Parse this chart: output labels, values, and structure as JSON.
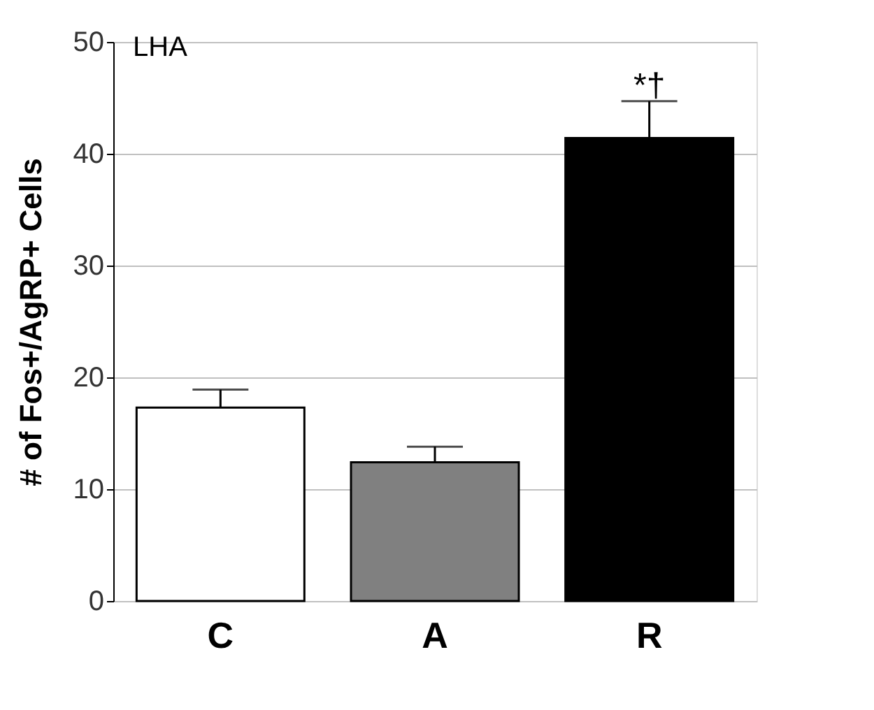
{
  "chart_data": {
    "type": "bar",
    "title": "LHA",
    "ylabel": "# of Fos+/AgRP+ Cells",
    "categories": [
      "C",
      "A",
      "R"
    ],
    "values": [
      17.3,
      12.4,
      41.4
    ],
    "colors": [
      "#ffffff",
      "#808080",
      "#000000"
    ],
    "errors": [
      [
        17.3,
        18.9
      ],
      [
        12.4,
        13.8
      ],
      [
        41.4,
        44.7
      ]
    ],
    "ylim": [
      0,
      50
    ],
    "yticks": [
      0,
      10,
      20,
      30,
      40,
      50
    ],
    "grid": "y",
    "annotations": [
      "*†"
    ]
  }
}
